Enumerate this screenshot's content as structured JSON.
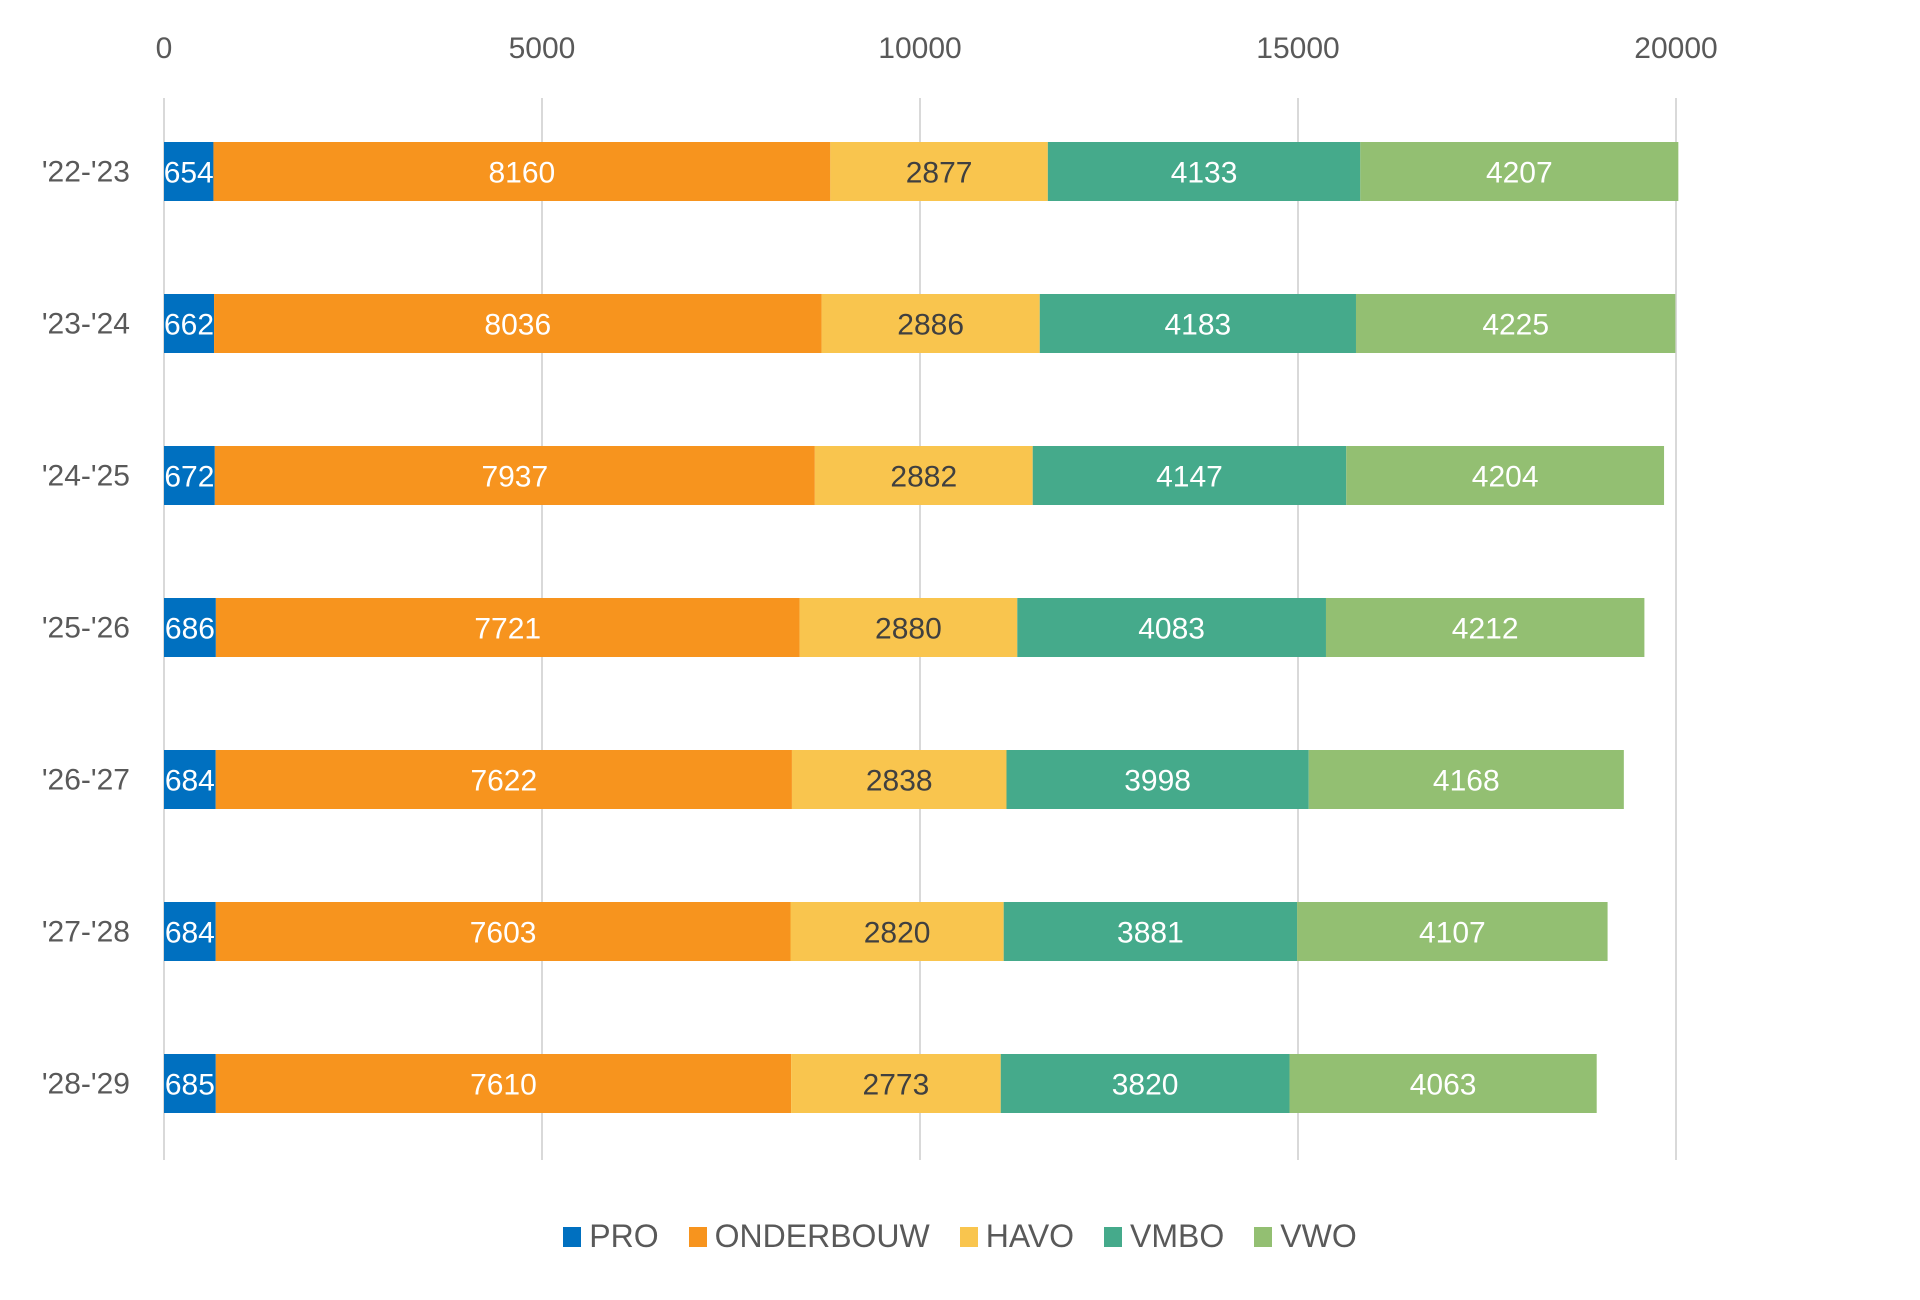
{
  "chart_data": {
    "type": "bar",
    "orientation": "horizontal",
    "stacked": true,
    "title": "",
    "xlabel": "",
    "ylabel": "",
    "xlim": [
      0,
      20000
    ],
    "x_ticks": [
      0,
      5000,
      10000,
      15000,
      20000
    ],
    "x_tick_labels": [
      "0",
      "5000",
      "10000",
      "15000",
      "20000"
    ],
    "x_axis_position": "top",
    "grid": true,
    "legend_position": "bottom",
    "categories": [
      "'22-'23",
      "'23-'24",
      "'24-'25",
      "'25-'26",
      "'26-'27",
      "'27-'28",
      "'28-'29"
    ],
    "series": [
      {
        "name": "PRO",
        "color": "#0070C0",
        "label_color": "#ffffff",
        "values": [
          654,
          662,
          672,
          686,
          684,
          684,
          685
        ]
      },
      {
        "name": "ONDERBOUW",
        "color": "#F7941E",
        "label_color": "#ffffff",
        "values": [
          8160,
          8036,
          7937,
          7721,
          7622,
          7603,
          7610
        ]
      },
      {
        "name": "HAVO",
        "color": "#F9C54E",
        "label_color": "#404040",
        "values": [
          2877,
          2886,
          2882,
          2880,
          2838,
          2820,
          2773
        ]
      },
      {
        "name": "VMBO",
        "color": "#45AA8B",
        "label_color": "#ffffff",
        "values": [
          4133,
          4183,
          4147,
          4083,
          3998,
          3881,
          3820
        ]
      },
      {
        "name": "VWO",
        "color": "#93BF72",
        "label_color": "#ffffff",
        "values": [
          4207,
          4225,
          4204,
          4212,
          4168,
          4107,
          4063
        ]
      }
    ],
    "data_labels": true
  }
}
